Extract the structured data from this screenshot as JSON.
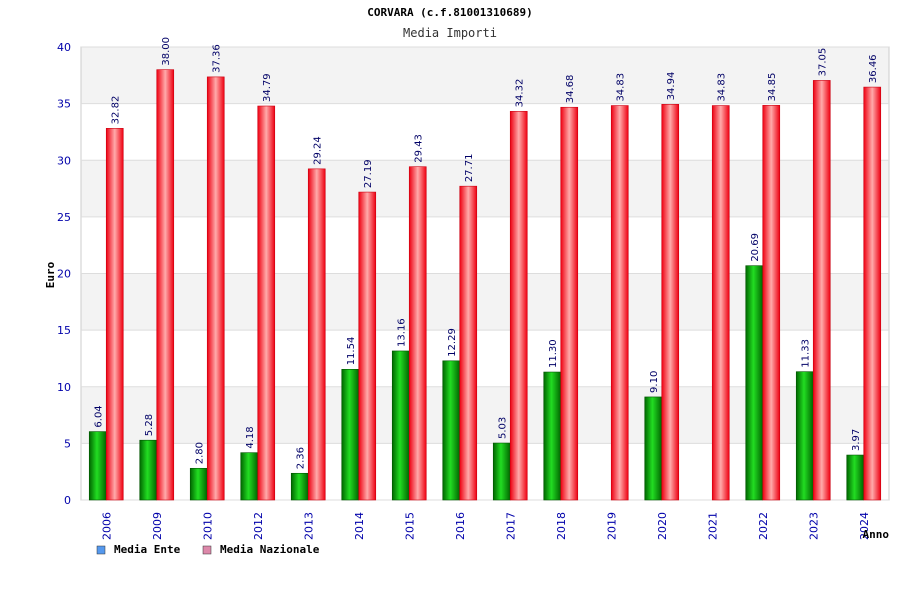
{
  "chart_data": {
    "type": "bar",
    "title": "CORVARA (c.f.81001310689)",
    "subtitle": "Media Importi",
    "xlabel": "Anno",
    "ylabel": "Euro",
    "ylim": [
      0,
      40
    ],
    "yticks": [
      0,
      5,
      10,
      15,
      20,
      25,
      30,
      35,
      40
    ],
    "grid": true,
    "legend_position": "bottom-left",
    "categories": [
      "2006",
      "2009",
      "2010",
      "2012",
      "2013",
      "2014",
      "2015",
      "2016",
      "2017",
      "2018",
      "2019",
      "2020",
      "2021",
      "2022",
      "2023",
      "2024"
    ],
    "series": [
      {
        "name": "Media Ente",
        "color": "#00aa00",
        "legend_color": "#5599ee",
        "values": [
          6.04,
          5.28,
          2.8,
          4.18,
          2.36,
          11.54,
          13.16,
          12.29,
          5.03,
          11.3,
          null,
          9.1,
          null,
          20.69,
          11.33,
          3.97
        ],
        "labels": [
          "6.04",
          "5.28",
          "2.80",
          "4.18",
          "2.36",
          "11.54",
          "13.16",
          "12.29",
          "5.03",
          "11.30",
          "",
          "9.10",
          "",
          "20.69",
          "11.33",
          "3.97"
        ]
      },
      {
        "name": "Media Nazionale",
        "color": "#ee1122",
        "legend_color": "#dd88aa",
        "values": [
          32.82,
          38.0,
          37.36,
          34.79,
          29.24,
          27.19,
          29.43,
          27.71,
          34.32,
          34.68,
          34.83,
          34.94,
          34.83,
          34.85,
          37.05,
          36.46
        ],
        "labels": [
          "32.82",
          "38.00",
          "37.36",
          "34.79",
          "29.24",
          "27.19",
          "29.43",
          "27.71",
          "34.32",
          "34.68",
          "34.83",
          "34.94",
          "34.83",
          "34.85",
          "37.05",
          "36.46"
        ]
      }
    ]
  }
}
